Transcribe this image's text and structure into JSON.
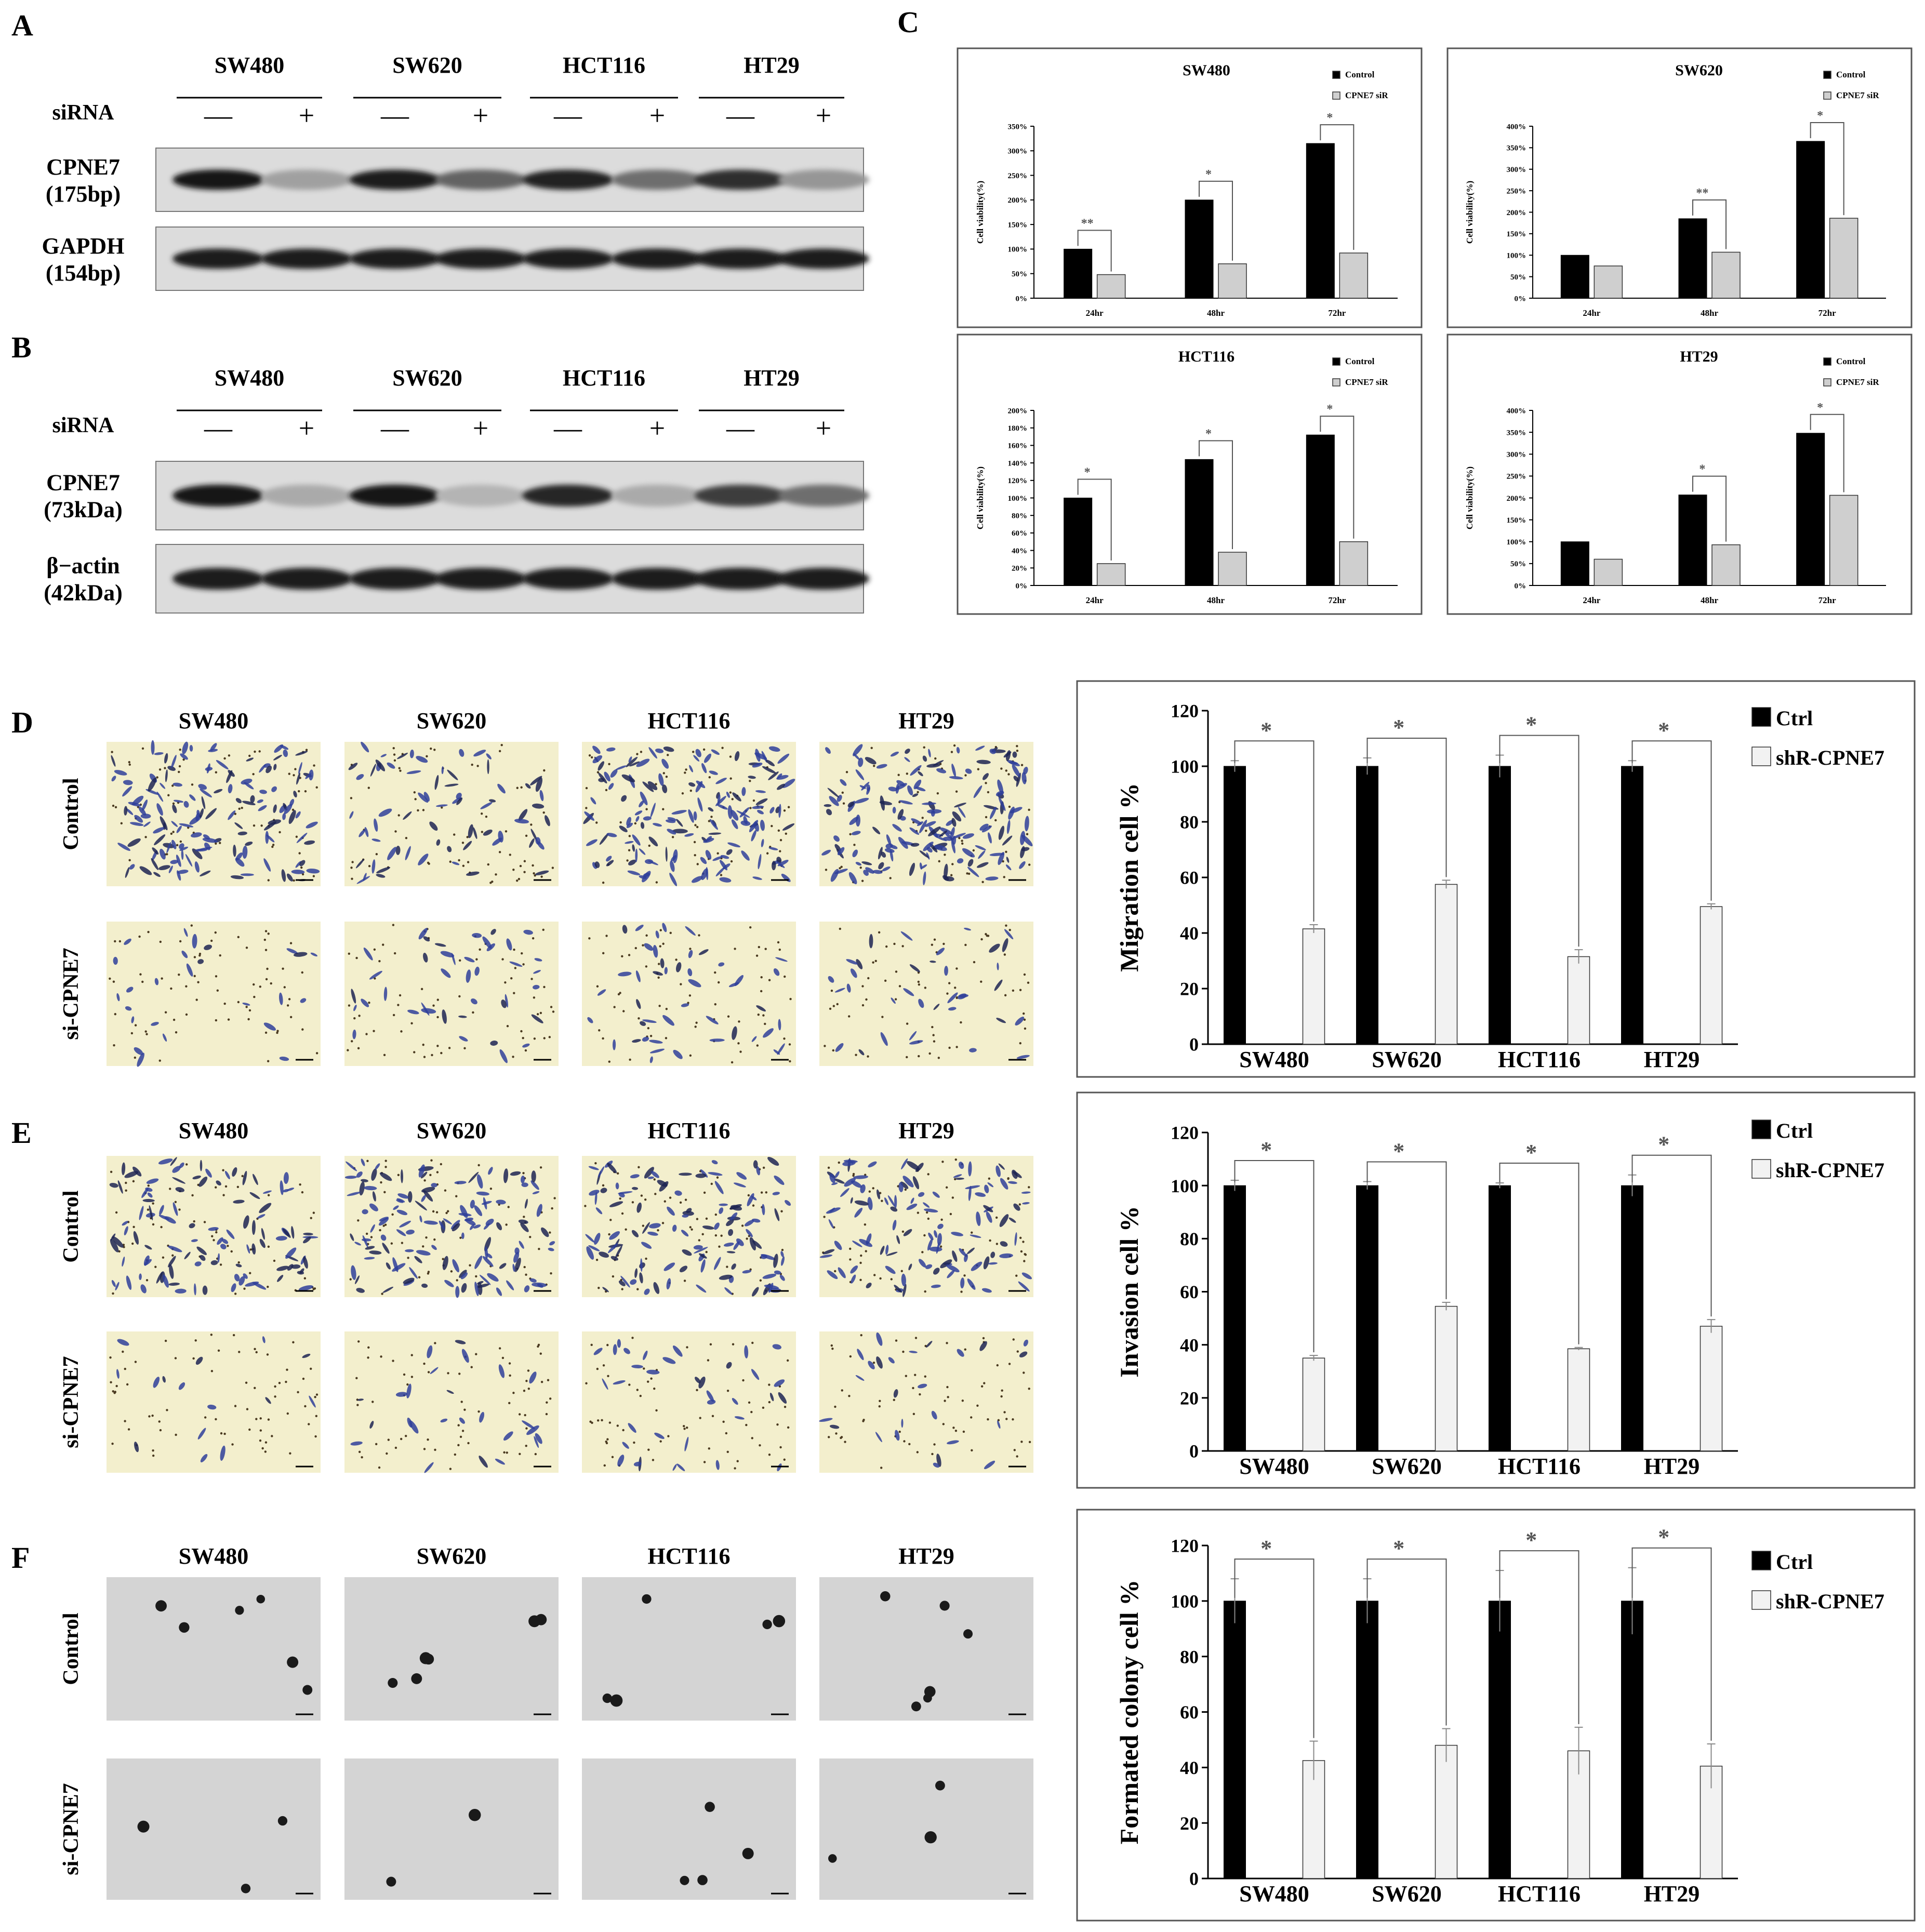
{
  "panel_letters": [
    "A",
    "B",
    "C",
    "D",
    "E",
    "F"
  ],
  "cell_lines": [
    "SW480",
    "SW620",
    "HCT116",
    "HT29"
  ],
  "panel_a": {
    "siRNA_label": "siRNA",
    "signs": [
      "—",
      "+",
      "—",
      "+",
      "—",
      "+",
      "—",
      "+"
    ],
    "rows": [
      {
        "label1": "CPNE7",
        "label2": "(175bp)",
        "intensity": [
          0.95,
          0.25,
          0.9,
          0.55,
          0.88,
          0.5,
          0.82,
          0.3
        ]
      },
      {
        "label1": "GAPDH",
        "label2": "(154bp)",
        "intensity": [
          0.92,
          0.92,
          0.9,
          0.9,
          0.92,
          0.92,
          0.9,
          0.9
        ]
      }
    ]
  },
  "panel_b": {
    "siRNA_label": "siRNA",
    "signs": [
      "—",
      "+",
      "—",
      "+",
      "—",
      "+",
      "—",
      "+"
    ],
    "rows": [
      {
        "label1": "CPNE7",
        "label2": "(73kDa)",
        "intensity": [
          0.95,
          0.2,
          0.95,
          0.15,
          0.85,
          0.2,
          0.75,
          0.5
        ]
      },
      {
        "label1": "β−actin",
        "label2": "(42kDa)",
        "intensity": [
          0.92,
          0.92,
          0.92,
          0.92,
          0.92,
          0.92,
          0.92,
          0.92
        ]
      }
    ]
  },
  "panel_de_images": {
    "row_labels": [
      "Control",
      "si-CPNE7"
    ]
  },
  "chart_data": [
    {
      "type": "bar",
      "title": "SW480",
      "categories": [
        "24hr",
        "48hr",
        "72hr"
      ],
      "ylabel": "Cell viability(%)",
      "yticks": [
        "0%",
        "50%",
        "100%",
        "150%",
        "200%",
        "250%",
        "300%",
        "350%"
      ],
      "ylim": [
        0,
        350
      ],
      "series": [
        {
          "name": "Control",
          "values": [
            100,
            200,
            315
          ]
        },
        {
          "name": "CPNE7 siR",
          "values": [
            48,
            70,
            92
          ]
        }
      ],
      "significance": [
        "**",
        "*",
        "*"
      ],
      "legend": "top-right"
    },
    {
      "type": "bar",
      "title": "SW620",
      "categories": [
        "24hr",
        "48hr",
        "72hr"
      ],
      "ylabel": "Cell viability(%)",
      "yticks": [
        "0%",
        "50%",
        "100%",
        "150%",
        "200%",
        "250%",
        "300%",
        "350%",
        "400%"
      ],
      "ylim": [
        0,
        400
      ],
      "series": [
        {
          "name": "Control",
          "values": [
            100,
            185,
            365
          ]
        },
        {
          "name": "CPNE7 siR",
          "values": [
            75,
            107,
            186
          ]
        }
      ],
      "significance": [
        "",
        "**",
        "*"
      ],
      "legend": "top-right"
    },
    {
      "type": "bar",
      "title": "HCT116",
      "categories": [
        "24hr",
        "48hr",
        "72hr"
      ],
      "ylabel": "Cell viability(%)",
      "yticks": [
        "0%",
        "20%",
        "40%",
        "60%",
        "80%",
        "100%",
        "120%",
        "140%",
        "160%",
        "180%",
        "200%"
      ],
      "ylim": [
        0,
        200
      ],
      "series": [
        {
          "name": "Control",
          "values": [
            100,
            144,
            172
          ]
        },
        {
          "name": "CPNE7 siR",
          "values": [
            25,
            38,
            50
          ]
        }
      ],
      "significance": [
        "*",
        "*",
        "*"
      ],
      "legend": "top-right"
    },
    {
      "type": "bar",
      "title": "HT29",
      "categories": [
        "24hr",
        "48hr",
        "72hr"
      ],
      "ylabel": "Cell viability(%)",
      "yticks": [
        "0%",
        "50%",
        "100%",
        "150%",
        "200%",
        "250%",
        "300%",
        "350%",
        "400%"
      ],
      "ylim": [
        0,
        400
      ],
      "series": [
        {
          "name": "Control",
          "values": [
            100,
            207,
            348
          ]
        },
        {
          "name": "CPNE7 siR",
          "values": [
            60,
            93,
            206
          ]
        }
      ],
      "significance": [
        "",
        "*",
        "*"
      ],
      "legend": "top-right"
    },
    {
      "type": "bar",
      "title": "",
      "categories": [
        "SW480",
        "SW620",
        "HCT116",
        "HT29"
      ],
      "ylabel": "Migration cell %",
      "yticks": [
        "0",
        "20",
        "40",
        "60",
        "80",
        "100",
        "120"
      ],
      "ylim": [
        0,
        120
      ],
      "series": [
        {
          "name": "Ctrl",
          "values": [
            100,
            100,
            100,
            100
          ],
          "errors": [
            2,
            3,
            4,
            2
          ]
        },
        {
          "name": "shR-CPNE7",
          "values": [
            41.5,
            57.5,
            31.5,
            49.5
          ],
          "errors": [
            1.5,
            1.5,
            2.5,
            1
          ]
        }
      ],
      "significance": [
        "*",
        "*",
        "*",
        "*"
      ],
      "legend": "top-right"
    },
    {
      "type": "bar",
      "title": "",
      "categories": [
        "SW480",
        "SW620",
        "HCT116",
        "HT29"
      ],
      "ylabel": "Invasion cell %",
      "yticks": [
        "0",
        "20",
        "40",
        "60",
        "80",
        "100",
        "120"
      ],
      "ylim": [
        0,
        120
      ],
      "series": [
        {
          "name": "Ctrl",
          "values": [
            100,
            100,
            100,
            100
          ],
          "errors": [
            2,
            1.5,
            1,
            4
          ]
        },
        {
          "name": "shR-CPNE7",
          "values": [
            35,
            54.5,
            38.5,
            47
          ],
          "errors": [
            1,
            1.5,
            0.5,
            2.5
          ]
        }
      ],
      "significance": [
        "*",
        "*",
        "*",
        "*"
      ],
      "legend": "top-right"
    },
    {
      "type": "bar",
      "title": "",
      "categories": [
        "SW480",
        "SW620",
        "HCT116",
        "HT29"
      ],
      "ylabel": "Formated colony cell %",
      "yticks": [
        "0",
        "20",
        "40",
        "60",
        "80",
        "100",
        "120"
      ],
      "ylim": [
        0,
        120
      ],
      "series": [
        {
          "name": "Ctrl",
          "values": [
            100,
            100,
            100,
            100
          ],
          "errors": [
            8,
            8,
            11,
            12
          ]
        },
        {
          "name": "shR-CPNE7",
          "values": [
            42.5,
            48,
            46,
            40.5
          ],
          "errors": [
            7,
            6,
            8.5,
            8
          ]
        }
      ],
      "significance": [
        "*",
        "*",
        "*",
        "*"
      ],
      "legend": "top-right"
    }
  ]
}
